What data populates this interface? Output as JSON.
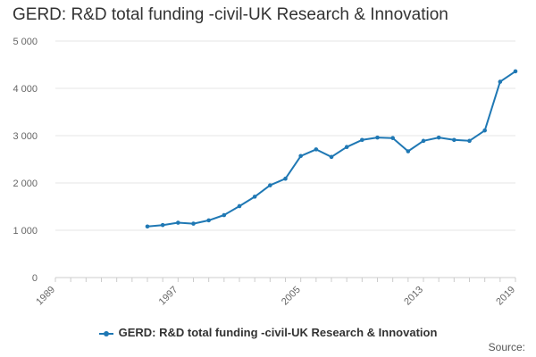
{
  "chart_data": {
    "type": "line",
    "title": "GERD: R&D total funding -civil-UK Research & Innovation",
    "xlabel": "",
    "ylabel": "",
    "x_ticks": [
      "1989",
      "1997",
      "2005",
      "2013",
      "2019"
    ],
    "y_ticks": [
      0,
      1000,
      2000,
      3000,
      4000,
      5000
    ],
    "y_tick_labels": [
      "0",
      "1 000",
      "2 000",
      "3 000",
      "4 000",
      "5 000"
    ],
    "xlim": [
      1989,
      2019
    ],
    "ylim": [
      0,
      5000
    ],
    "grid": true,
    "legend_position": "bottom",
    "color": "#1f78b4",
    "series": [
      {
        "name": "GERD: R&D total funding -civil-UK Research & Innovation",
        "x": [
          1995,
          1996,
          1997,
          1998,
          1999,
          2000,
          2001,
          2002,
          2003,
          2004,
          2005,
          2006,
          2007,
          2008,
          2009,
          2010,
          2011,
          2012,
          2013,
          2014,
          2015,
          2016,
          2017,
          2018,
          2019
        ],
        "values": [
          1080,
          1110,
          1160,
          1140,
          1210,
          1320,
          1510,
          1710,
          1950,
          2090,
          2570,
          2710,
          2550,
          2760,
          2910,
          2960,
          2950,
          2670,
          2890,
          2960,
          2910,
          2890,
          3110,
          4140,
          4360
        ]
      }
    ]
  },
  "source_label": "Source:"
}
